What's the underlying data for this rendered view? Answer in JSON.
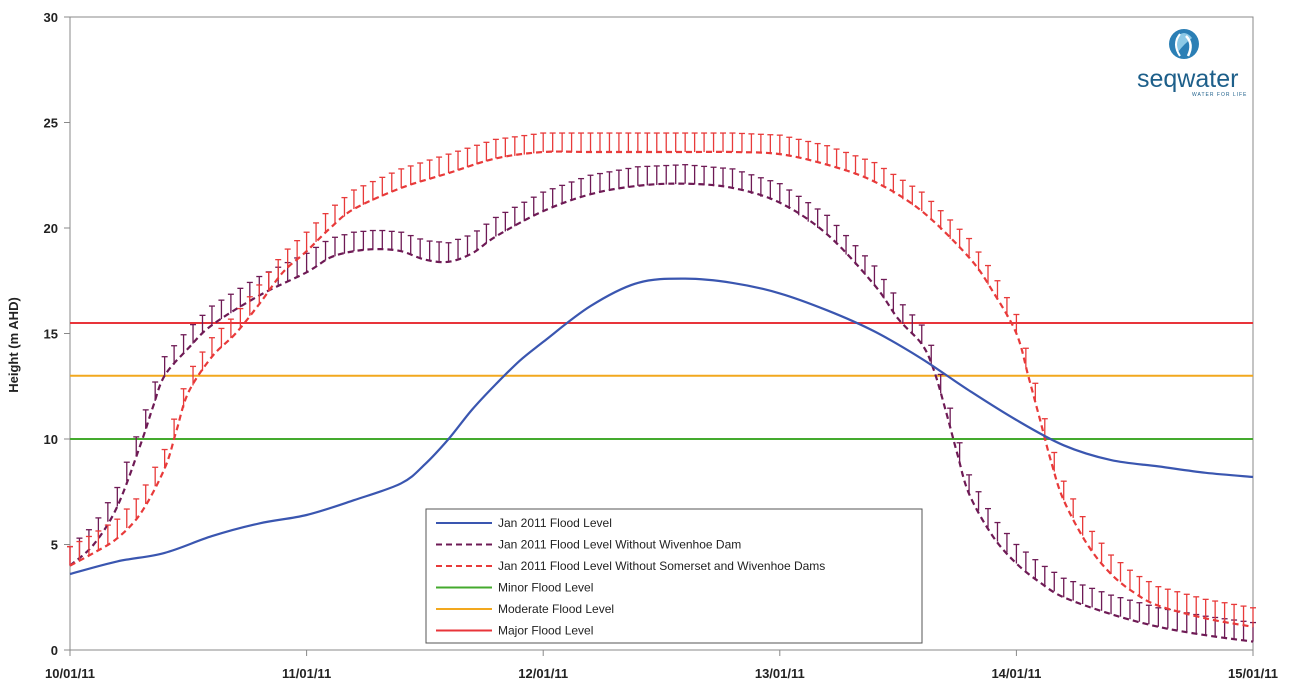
{
  "chart_data": {
    "type": "line",
    "ylabel": "Height (m AHD)",
    "xlabel": "",
    "title": "",
    "ylim": [
      0,
      30
    ],
    "yticks": [
      0,
      5,
      10,
      15,
      20,
      25,
      30
    ],
    "xlim": [
      0,
      5
    ],
    "x_unit": "days from 10/01/11",
    "xticks": [
      {
        "x": 0,
        "label": "10/01/11"
      },
      {
        "x": 1,
        "label": "11/01/11"
      },
      {
        "x": 2,
        "label": "12/01/11"
      },
      {
        "x": 3,
        "label": "13/01/11"
      },
      {
        "x": 4,
        "label": "14/01/11"
      },
      {
        "x": 5,
        "label": "15/01/11"
      }
    ],
    "grid": false,
    "legend_position": "bottom-center",
    "series": [
      {
        "name": "Jan 2011 Flood Level",
        "style": "solid",
        "color": "#3a56b0",
        "points": [
          [
            0,
            3.6
          ],
          [
            0.2,
            4.2
          ],
          [
            0.4,
            4.6
          ],
          [
            0.6,
            5.4
          ],
          [
            0.8,
            6.0
          ],
          [
            1.0,
            6.4
          ],
          [
            1.2,
            7.1
          ],
          [
            1.4,
            7.9
          ],
          [
            1.5,
            8.8
          ],
          [
            1.6,
            10.0
          ],
          [
            1.7,
            11.4
          ],
          [
            1.8,
            12.6
          ],
          [
            1.9,
            13.7
          ],
          [
            2.0,
            14.6
          ],
          [
            2.2,
            16.3
          ],
          [
            2.4,
            17.4
          ],
          [
            2.6,
            17.6
          ],
          [
            2.8,
            17.4
          ],
          [
            3.0,
            16.9
          ],
          [
            3.2,
            16.1
          ],
          [
            3.4,
            15.1
          ],
          [
            3.6,
            13.8
          ],
          [
            3.8,
            12.3
          ],
          [
            4.0,
            10.9
          ],
          [
            4.2,
            9.7
          ],
          [
            4.4,
            9.0
          ],
          [
            4.6,
            8.7
          ],
          [
            4.8,
            8.4
          ],
          [
            5.0,
            8.2
          ]
        ]
      },
      {
        "name": "Jan 2011 Flood Level Without Wivenhoe Dam",
        "style": "dashed",
        "color": "#6e1a55",
        "errorbars": true,
        "points": [
          [
            0,
            4.0
          ],
          [
            0.1,
            5.0
          ],
          [
            0.2,
            6.8
          ],
          [
            0.3,
            9.8
          ],
          [
            0.35,
            11.5
          ],
          [
            0.4,
            13.0
          ],
          [
            0.5,
            14.3
          ],
          [
            0.6,
            15.4
          ],
          [
            0.8,
            16.8
          ],
          [
            1.0,
            17.9
          ],
          [
            1.1,
            18.6
          ],
          [
            1.2,
            18.9
          ],
          [
            1.3,
            19.0
          ],
          [
            1.4,
            18.9
          ],
          [
            1.5,
            18.5
          ],
          [
            1.6,
            18.4
          ],
          [
            1.7,
            18.8
          ],
          [
            1.8,
            19.6
          ],
          [
            2.0,
            20.8
          ],
          [
            2.2,
            21.6
          ],
          [
            2.4,
            22.0
          ],
          [
            2.6,
            22.1
          ],
          [
            2.8,
            21.9
          ],
          [
            3.0,
            21.2
          ],
          [
            3.2,
            19.7
          ],
          [
            3.4,
            17.3
          ],
          [
            3.5,
            15.7
          ],
          [
            3.6,
            14.5
          ],
          [
            3.65,
            13.3
          ],
          [
            3.7,
            11.4
          ],
          [
            3.75,
            9.3
          ],
          [
            3.8,
            7.4
          ],
          [
            3.9,
            5.4
          ],
          [
            4.0,
            4.1
          ],
          [
            4.1,
            3.2
          ],
          [
            4.2,
            2.5
          ],
          [
            4.4,
            1.7
          ],
          [
            4.6,
            1.1
          ],
          [
            4.8,
            0.7
          ],
          [
            5.0,
            0.4
          ]
        ]
      },
      {
        "name": "Jan 2011 Flood Level Without Somerset and Wivenhoe Dams",
        "style": "dashed",
        "color": "#e83a3a",
        "errorbars": true,
        "points": [
          [
            0,
            4.0
          ],
          [
            0.1,
            4.6
          ],
          [
            0.2,
            5.3
          ],
          [
            0.3,
            6.5
          ],
          [
            0.4,
            8.6
          ],
          [
            0.45,
            10.4
          ],
          [
            0.5,
            12.2
          ],
          [
            0.6,
            13.9
          ],
          [
            0.7,
            15.0
          ],
          [
            0.8,
            16.4
          ],
          [
            0.9,
            17.9
          ],
          [
            1.0,
            18.9
          ],
          [
            1.1,
            20.0
          ],
          [
            1.2,
            20.9
          ],
          [
            1.4,
            21.9
          ],
          [
            1.6,
            22.6
          ],
          [
            1.8,
            23.3
          ],
          [
            2.0,
            23.6
          ],
          [
            2.2,
            23.6
          ],
          [
            2.4,
            23.6
          ],
          [
            2.6,
            23.6
          ],
          [
            2.8,
            23.6
          ],
          [
            3.0,
            23.5
          ],
          [
            3.2,
            23.0
          ],
          [
            3.4,
            22.2
          ],
          [
            3.6,
            20.8
          ],
          [
            3.8,
            18.6
          ],
          [
            3.9,
            17.0
          ],
          [
            4.0,
            15.0
          ],
          [
            4.05,
            13.0
          ],
          [
            4.1,
            10.9
          ],
          [
            4.15,
            8.8
          ],
          [
            4.2,
            7.1
          ],
          [
            4.3,
            5.0
          ],
          [
            4.4,
            3.6
          ],
          [
            4.5,
            2.7
          ],
          [
            4.6,
            2.1
          ],
          [
            4.8,
            1.5
          ],
          [
            5.0,
            1.1
          ]
        ]
      },
      {
        "name": "Minor Flood Level",
        "style": "solid",
        "color": "#44aa2e",
        "constant": 10
      },
      {
        "name": "Moderate Flood Level",
        "style": "solid",
        "color": "#f2a81e",
        "constant": 13
      },
      {
        "name": "Major Flood Level",
        "style": "solid",
        "color": "#e8343a",
        "constant": 15.5
      }
    ]
  },
  "logo": {
    "name": "seqwater",
    "tagline": "WATER FOR LIFE"
  }
}
